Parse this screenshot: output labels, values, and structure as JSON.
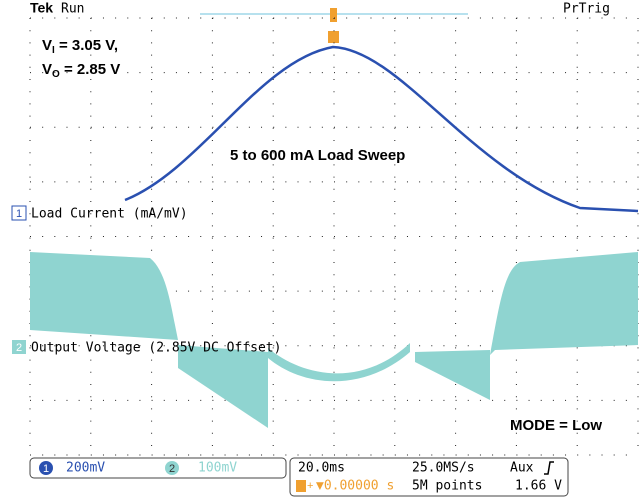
{
  "header": {
    "brand": "Tek",
    "state": "Run",
    "trigger_state": "PrTrig"
  },
  "annotations": {
    "vi": {
      "symbol": "V",
      "subscript": "I",
      "text": " = 3.05 V,"
    },
    "vo": {
      "symbol": "V",
      "subscript": "O",
      "text": " = 2.85 V"
    },
    "sweep": "5 to 600 mA Load Sweep",
    "mode": "MODE = Low"
  },
  "channels": [
    {
      "number": "1",
      "label": "Load Current (mA/mV)",
      "scale": "200mV"
    },
    {
      "number": "2",
      "label": "Output Voltage (2.85V DC Offset)",
      "scale": "100mV"
    }
  ],
  "status": {
    "timebase": "20.0ms",
    "sample_rate": "25.0MS/s",
    "trigger_source": "Aux",
    "trigger_position": "▼0.00000 s",
    "record_length": "5M points",
    "trigger_level": "1.66 V"
  }
}
